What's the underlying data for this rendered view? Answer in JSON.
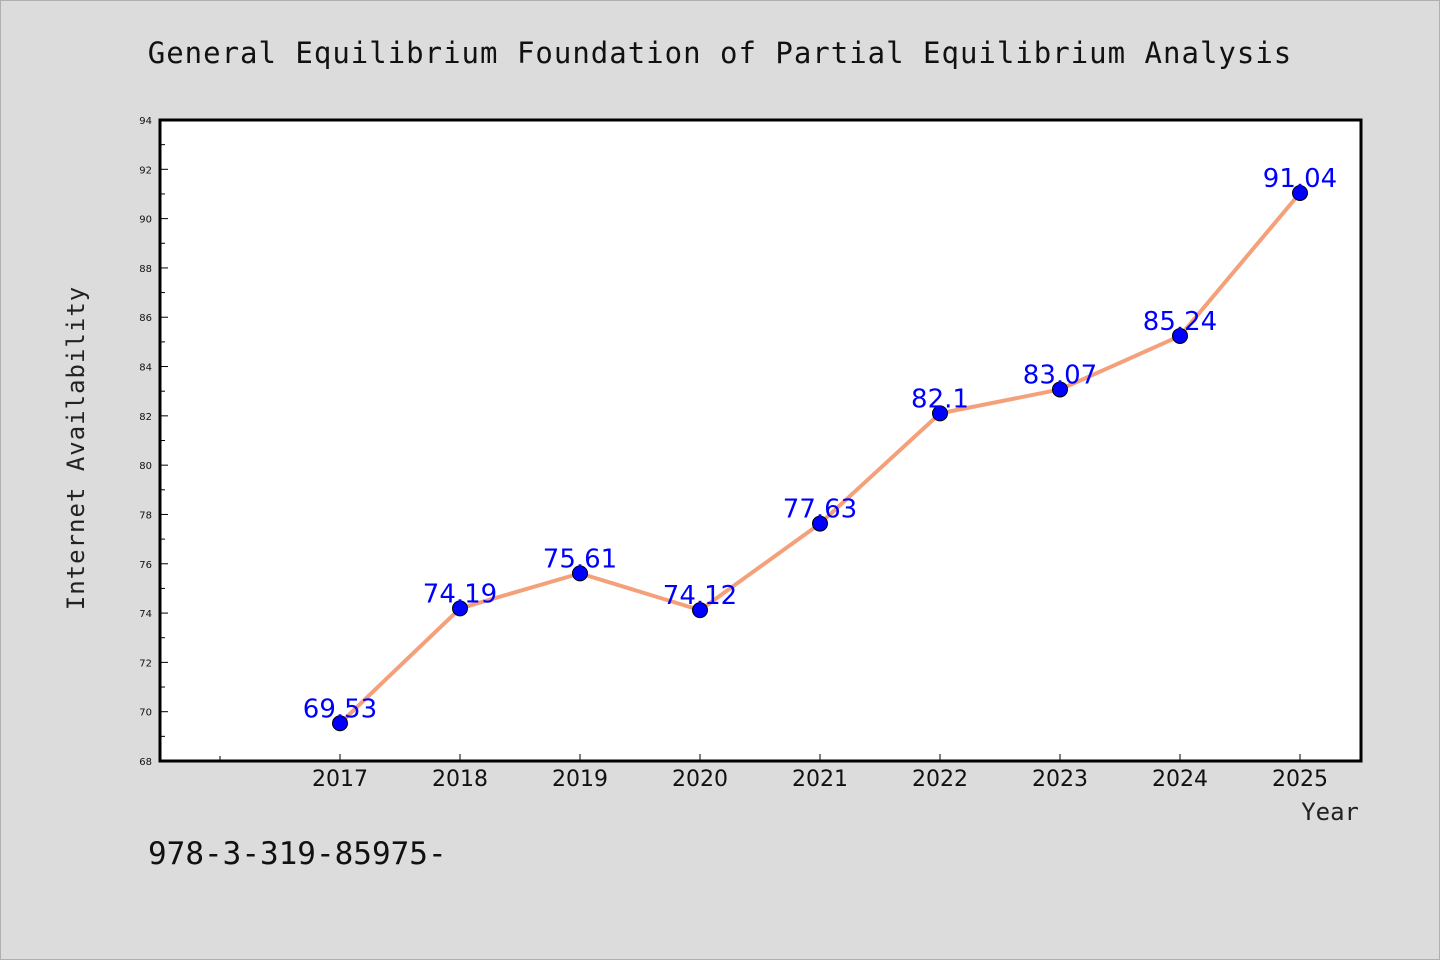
{
  "title": "General Equilibrium Foundation of Partial Equilibrium Analysis",
  "footer_text": "978-3-319-85975-",
  "colors": {
    "background": "#dcdcdc",
    "plot_background": "#ffffff",
    "line": "#f4a07a",
    "marker": "#0000ff",
    "data_label": "#0000ff"
  },
  "chart_data": {
    "type": "line",
    "title": "General Equilibrium Foundation of Partial Equilibrium Analysis",
    "xlabel": "Year",
    "ylabel": "Internet Availability",
    "x": [
      "2017",
      "2018",
      "2019",
      "2020",
      "2021",
      "2022",
      "2023",
      "2024",
      "2025"
    ],
    "values": [
      69.53,
      74.19,
      75.61,
      74.12,
      77.63,
      82.1,
      83.07,
      85.24,
      91.04
    ],
    "value_labels": [
      "69.53",
      "74.19",
      "75.61",
      "74.12",
      "77.63",
      "82.1",
      "83.07",
      "85.24",
      "91.04"
    ],
    "ylim": [
      68,
      94
    ],
    "yticks": [
      "68",
      "70",
      "72",
      "74",
      "76",
      "78",
      "80",
      "82",
      "84",
      "86",
      "88",
      "90",
      "92",
      "94"
    ],
    "grid": false,
    "legend": "none"
  }
}
